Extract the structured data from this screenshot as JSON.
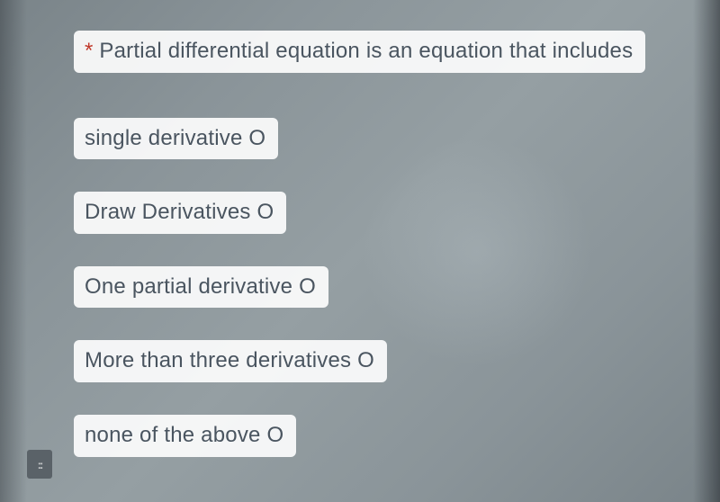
{
  "question": {
    "required_marker": "*",
    "text": "Partial differential equation is an equation that includes",
    "text_color": "#4a5560",
    "asterisk_color": "#c0392b",
    "pill_bg": "rgba(255,255,255,0.9)"
  },
  "options": [
    {
      "label": "single derivative",
      "radio_glyph": "O"
    },
    {
      "label": "Draw Derivatives",
      "radio_glyph": "O"
    },
    {
      "label": "One partial derivative",
      "radio_glyph": "O"
    },
    {
      "label": "More than three derivatives",
      "radio_glyph": "O"
    },
    {
      "label": "none of the above",
      "radio_glyph": "O"
    }
  ],
  "left_marker": {
    "glyph": "::"
  },
  "background": {
    "base_color": "#8a9499"
  }
}
